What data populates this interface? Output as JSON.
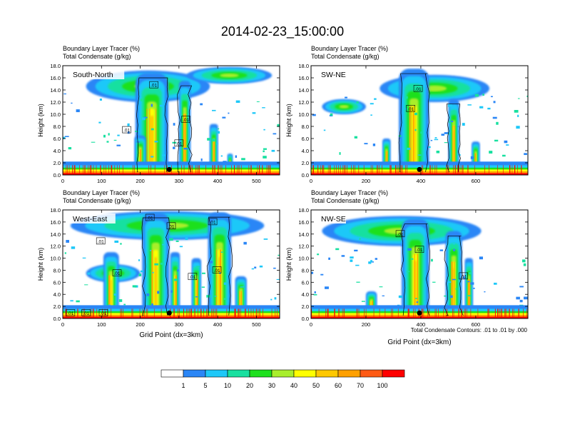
{
  "chart_data": {
    "type": "heatmap",
    "title": "2014-02-23_15:00:00",
    "header_line1": "Boundary Layer Tracer   (%)",
    "header_line2": "Total Condensate   (g/kg)",
    "ylabel": "Height (km)",
    "xlabel": "Grid Point (dx=3km)",
    "footnote": "Total Condensate Contours: .01 to .01 by .000",
    "contour_label": ".01",
    "y_ticks": [
      "0.0",
      "2.0",
      "4.0",
      "6.0",
      "8.0",
      "10.0",
      "12.0",
      "14.0",
      "16.0",
      "18.0"
    ],
    "ylim": [
      0,
      18
    ],
    "colorbar": {
      "labels": [
        "1",
        "5",
        "10",
        "20",
        "30",
        "40",
        "50",
        "60",
        "70",
        "100"
      ],
      "colors": [
        "#ffffff",
        "#2a86f6",
        "#1ec8f8",
        "#18e0a0",
        "#1ee01e",
        "#a8ee2c",
        "#ffff00",
        "#ffc800",
        "#ffa000",
        "#ff5a14",
        "#ff0000"
      ]
    },
    "panels": [
      {
        "name": "South-North",
        "xlim": [
          0,
          560
        ],
        "x_ticks": [
          0,
          100,
          200,
          300,
          400,
          500
        ],
        "marker_x": 275,
        "contour_labels": [
          [
            235,
            14.8
          ],
          [
            318,
            9.1
          ],
          [
            165,
            7.4
          ],
          [
            300,
            5.2
          ]
        ],
        "plumes": [
          {
            "x": 230,
            "w": 85,
            "top": 16.8
          },
          {
            "x": 315,
            "w": 30,
            "top": 15.5
          },
          {
            "x": 390,
            "w": 22,
            "top": 8.4
          },
          {
            "x": 200,
            "w": 30,
            "top": 6.5
          },
          {
            "x": 432,
            "w": 14,
            "top": 3.5
          }
        ],
        "anvils": [
          {
            "x0": 60,
            "x1": 380,
            "bot": 12.0,
            "top": 17.2
          },
          {
            "x0": 320,
            "x1": 540,
            "bot": 15.0,
            "top": 17.8
          }
        ]
      },
      {
        "name": "SW-NE",
        "xlim": [
          0,
          790
        ],
        "x_ticks": [
          0,
          200,
          400,
          600
        ],
        "marker_x": 395,
        "contour_labels": [
          [
            390,
            14.2
          ],
          [
            363,
            10.9
          ]
        ],
        "plumes": [
          {
            "x": 375,
            "w": 110,
            "top": 17.5
          },
          {
            "x": 520,
            "w": 40,
            "top": 12.5
          },
          {
            "x": 275,
            "w": 30,
            "top": 6.0
          },
          {
            "x": 600,
            "w": 30,
            "top": 5.5
          }
        ],
        "anvils": [
          {
            "x0": 250,
            "x1": 650,
            "bot": 12.0,
            "top": 16.5
          },
          {
            "x0": 40,
            "x1": 200,
            "bot": 10.0,
            "top": 12.5
          }
        ]
      },
      {
        "name": "West-East",
        "xlim": [
          0,
          560
        ],
        "x_ticks": [
          0,
          100,
          200,
          300,
          400,
          500
        ],
        "marker_x": 275,
        "contour_labels": [
          [
            225,
            16.7
          ],
          [
            280,
            15.3
          ],
          [
            387,
            16.0
          ],
          [
            98,
            12.8
          ],
          [
            140,
            7.5
          ],
          [
            335,
            6.9
          ],
          [
            398,
            8.0
          ],
          [
            20,
            0.9
          ],
          [
            60,
            0.9
          ],
          [
            105,
            0.9
          ]
        ],
        "plumes": [
          {
            "x": 240,
            "w": 70,
            "top": 17.5
          },
          {
            "x": 405,
            "w": 60,
            "top": 17.6
          },
          {
            "x": 125,
            "w": 40,
            "top": 11.0
          },
          {
            "x": 290,
            "w": 25,
            "top": 11.0
          },
          {
            "x": 345,
            "w": 25,
            "top": 10.0
          },
          {
            "x": 460,
            "w": 30,
            "top": 7.0
          }
        ],
        "anvils": [
          {
            "x0": 20,
            "x1": 520,
            "bot": 13.0,
            "top": 17.8
          },
          {
            "x0": 60,
            "x1": 200,
            "bot": 6.0,
            "top": 9.0
          }
        ]
      },
      {
        "name": "NW-SE",
        "xlim": [
          0,
          790
        ],
        "x_ticks": [
          0,
          200,
          400,
          600
        ],
        "marker_x": 395,
        "contour_labels": [
          [
            325,
            14.0
          ],
          [
            395,
            11.4
          ],
          [
            555,
            7.0
          ]
        ],
        "plumes": [
          {
            "x": 380,
            "w": 100,
            "top": 16.5
          },
          {
            "x": 520,
            "w": 60,
            "top": 14.5
          },
          {
            "x": 575,
            "w": 30,
            "top": 10.0
          },
          {
            "x": 220,
            "w": 40,
            "top": 4.5
          }
        ],
        "anvils": [
          {
            "x0": 40,
            "x1": 620,
            "bot": 12.0,
            "top": 17.0
          }
        ]
      }
    ]
  }
}
